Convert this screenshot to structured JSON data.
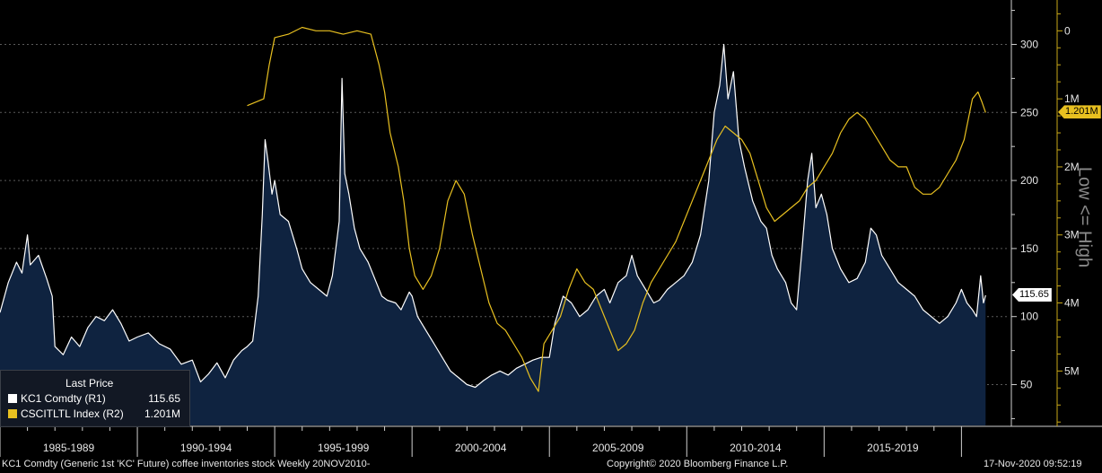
{
  "chart_data": {
    "type": "area",
    "footer": {
      "left": "KC1 Comdty (Generic 1st 'KC' Future) coffee inventories stock  Weekly 20NOV2010-",
      "center": "Copyright© 2020 Bloomberg Finance L.P.",
      "right": "17-Nov-2020 09:52:19"
    },
    "x_labels": [
      "1985-1989",
      "1990-1994",
      "1995-1999",
      "2000-2004",
      "2005-2009",
      "2010-2014",
      "2015-2019"
    ],
    "x_range": [
      1985.0,
      2021.0
    ],
    "y_left": {
      "ticks": [
        50,
        100,
        150,
        200,
        250,
        300
      ],
      "range": [
        20,
        330
      ]
    },
    "y_right": {
      "ticks": [
        "0",
        "1M",
        "2M",
        "3M",
        "4M",
        "5M"
      ],
      "tick_values": [
        0,
        1,
        2,
        3,
        4,
        5
      ],
      "range_millions": [
        -0.4,
        5.8
      ],
      "inverted": true,
      "title": "Low <= High"
    },
    "legend": {
      "title": "Last Price",
      "rows": [
        {
          "name": "KC1 Comdty  (R1)",
          "value": "115.65",
          "color": "#ffffff"
        },
        {
          "name": "CSCITLTL Index  (R2)",
          "value": "1.201M",
          "color": "#e8c020"
        }
      ]
    },
    "last_value_tags": [
      {
        "text": "115.65",
        "value": 115.65,
        "axis": "left",
        "bg": "#ffffff",
        "fg": "#000000"
      },
      {
        "text": "1.201M",
        "value": 1.201,
        "axis": "right",
        "bg": "#e8c020",
        "fg": "#000000"
      }
    ],
    "series": [
      {
        "name": "KC1 Comdty",
        "color": "#ffffff",
        "fill": "#0f2340",
        "points": [
          [
            1985.0,
            103
          ],
          [
            1985.3,
            125
          ],
          [
            1985.6,
            140
          ],
          [
            1985.8,
            132
          ],
          [
            1986.0,
            160
          ],
          [
            1986.1,
            138
          ],
          [
            1986.4,
            145
          ],
          [
            1986.7,
            128
          ],
          [
            1986.9,
            115
          ],
          [
            1987.0,
            78
          ],
          [
            1987.3,
            72
          ],
          [
            1987.6,
            85
          ],
          [
            1987.9,
            78
          ],
          [
            1988.2,
            92
          ],
          [
            1988.5,
            100
          ],
          [
            1988.8,
            97
          ],
          [
            1989.1,
            105
          ],
          [
            1989.4,
            95
          ],
          [
            1989.7,
            82
          ],
          [
            1990.0,
            85
          ],
          [
            1990.4,
            88
          ],
          [
            1990.8,
            80
          ],
          [
            1991.2,
            76
          ],
          [
            1991.6,
            65
          ],
          [
            1992.0,
            68
          ],
          [
            1992.3,
            52
          ],
          [
            1992.6,
            58
          ],
          [
            1992.9,
            66
          ],
          [
            1993.2,
            55
          ],
          [
            1993.5,
            68
          ],
          [
            1993.8,
            75
          ],
          [
            1994.0,
            78
          ],
          [
            1994.2,
            82
          ],
          [
            1994.4,
            115
          ],
          [
            1994.55,
            175
          ],
          [
            1994.65,
            230
          ],
          [
            1994.75,
            215
          ],
          [
            1994.9,
            190
          ],
          [
            1995.0,
            200
          ],
          [
            1995.2,
            175
          ],
          [
            1995.5,
            170
          ],
          [
            1995.8,
            150
          ],
          [
            1996.0,
            135
          ],
          [
            1996.3,
            125
          ],
          [
            1996.6,
            120
          ],
          [
            1996.9,
            115
          ],
          [
            1997.1,
            130
          ],
          [
            1997.35,
            170
          ],
          [
            1997.45,
            275
          ],
          [
            1997.55,
            205
          ],
          [
            1997.7,
            190
          ],
          [
            1997.9,
            165
          ],
          [
            1998.1,
            150
          ],
          [
            1998.4,
            140
          ],
          [
            1998.7,
            125
          ],
          [
            1998.9,
            115
          ],
          [
            1999.1,
            112
          ],
          [
            1999.4,
            110
          ],
          [
            1999.6,
            105
          ],
          [
            1999.9,
            118
          ],
          [
            2000.0,
            115
          ],
          [
            2000.2,
            100
          ],
          [
            2000.5,
            90
          ],
          [
            2000.8,
            80
          ],
          [
            2001.1,
            70
          ],
          [
            2001.4,
            60
          ],
          [
            2001.7,
            55
          ],
          [
            2002.0,
            50
          ],
          [
            2002.3,
            48
          ],
          [
            2002.6,
            53
          ],
          [
            2002.9,
            57
          ],
          [
            2003.2,
            60
          ],
          [
            2003.5,
            57
          ],
          [
            2003.8,
            62
          ],
          [
            2004.1,
            65
          ],
          [
            2004.4,
            68
          ],
          [
            2004.7,
            70
          ],
          [
            2005.0,
            70
          ],
          [
            2005.2,
            95
          ],
          [
            2005.5,
            115
          ],
          [
            2005.8,
            110
          ],
          [
            2006.1,
            100
          ],
          [
            2006.4,
            105
          ],
          [
            2006.7,
            115
          ],
          [
            2007.0,
            120
          ],
          [
            2007.2,
            110
          ],
          [
            2007.5,
            125
          ],
          [
            2007.8,
            130
          ],
          [
            2008.0,
            145
          ],
          [
            2008.2,
            130
          ],
          [
            2008.5,
            120
          ],
          [
            2008.8,
            110
          ],
          [
            2009.0,
            112
          ],
          [
            2009.3,
            120
          ],
          [
            2009.6,
            125
          ],
          [
            2009.9,
            130
          ],
          [
            2010.2,
            140
          ],
          [
            2010.5,
            160
          ],
          [
            2010.8,
            200
          ],
          [
            2011.0,
            250
          ],
          [
            2011.2,
            270
          ],
          [
            2011.35,
            300
          ],
          [
            2011.5,
            260
          ],
          [
            2011.7,
            280
          ],
          [
            2011.9,
            230
          ],
          [
            2012.1,
            210
          ],
          [
            2012.4,
            185
          ],
          [
            2012.7,
            170
          ],
          [
            2012.9,
            165
          ],
          [
            2013.1,
            145
          ],
          [
            2013.3,
            135
          ],
          [
            2013.6,
            125
          ],
          [
            2013.8,
            110
          ],
          [
            2014.0,
            105
          ],
          [
            2014.2,
            150
          ],
          [
            2014.4,
            200
          ],
          [
            2014.55,
            220
          ],
          [
            2014.7,
            180
          ],
          [
            2014.9,
            190
          ],
          [
            2015.1,
            175
          ],
          [
            2015.3,
            150
          ],
          [
            2015.6,
            135
          ],
          [
            2015.9,
            125
          ],
          [
            2016.2,
            128
          ],
          [
            2016.5,
            140
          ],
          [
            2016.7,
            165
          ],
          [
            2016.9,
            160
          ],
          [
            2017.1,
            145
          ],
          [
            2017.4,
            135
          ],
          [
            2017.7,
            125
          ],
          [
            2018.0,
            120
          ],
          [
            2018.3,
            115
          ],
          [
            2018.6,
            105
          ],
          [
            2018.9,
            100
          ],
          [
            2019.2,
            95
          ],
          [
            2019.5,
            100
          ],
          [
            2019.8,
            110
          ],
          [
            2020.0,
            120
          ],
          [
            2020.2,
            110
          ],
          [
            2020.4,
            105
          ],
          [
            2020.55,
            100
          ],
          [
            2020.7,
            130
          ],
          [
            2020.8,
            110
          ],
          [
            2020.88,
            115.65
          ]
        ]
      },
      {
        "name": "CSCITLTL Index",
        "color": "#e8c020",
        "points": [
          [
            1994.0,
            1.1
          ],
          [
            1994.6,
            1.0
          ],
          [
            1994.8,
            0.5
          ],
          [
            1995.0,
            0.1
          ],
          [
            1995.5,
            0.05
          ],
          [
            1996.0,
            -0.05
          ],
          [
            1996.5,
            0.0
          ],
          [
            1997.0,
            0.0
          ],
          [
            1997.5,
            0.05
          ],
          [
            1998.0,
            0.0
          ],
          [
            1998.5,
            0.05
          ],
          [
            1998.8,
            0.5
          ],
          [
            1999.0,
            0.9
          ],
          [
            1999.2,
            1.5
          ],
          [
            1999.5,
            2.0
          ],
          [
            1999.7,
            2.5
          ],
          [
            1999.9,
            3.2
          ],
          [
            2000.1,
            3.6
          ],
          [
            2000.4,
            3.8
          ],
          [
            2000.7,
            3.6
          ],
          [
            2001.0,
            3.2
          ],
          [
            2001.3,
            2.5
          ],
          [
            2001.6,
            2.2
          ],
          [
            2001.9,
            2.4
          ],
          [
            2002.2,
            3.0
          ],
          [
            2002.5,
            3.5
          ],
          [
            2002.8,
            4.0
          ],
          [
            2003.1,
            4.3
          ],
          [
            2003.4,
            4.4
          ],
          [
            2003.7,
            4.6
          ],
          [
            2004.0,
            4.8
          ],
          [
            2004.3,
            5.1
          ],
          [
            2004.6,
            5.3
          ],
          [
            2004.8,
            4.6
          ],
          [
            2005.1,
            4.4
          ],
          [
            2005.4,
            4.2
          ],
          [
            2005.7,
            3.8
          ],
          [
            2006.0,
            3.5
          ],
          [
            2006.3,
            3.7
          ],
          [
            2006.6,
            3.8
          ],
          [
            2006.9,
            4.1
          ],
          [
            2007.2,
            4.4
          ],
          [
            2007.5,
            4.7
          ],
          [
            2007.8,
            4.6
          ],
          [
            2008.1,
            4.4
          ],
          [
            2008.4,
            4.0
          ],
          [
            2008.7,
            3.7
          ],
          [
            2009.0,
            3.5
          ],
          [
            2009.3,
            3.3
          ],
          [
            2009.6,
            3.1
          ],
          [
            2009.9,
            2.8
          ],
          [
            2010.2,
            2.5
          ],
          [
            2010.5,
            2.2
          ],
          [
            2010.8,
            1.9
          ],
          [
            2011.1,
            1.6
          ],
          [
            2011.4,
            1.4
          ],
          [
            2011.7,
            1.5
          ],
          [
            2012.0,
            1.6
          ],
          [
            2012.3,
            1.8
          ],
          [
            2012.6,
            2.2
          ],
          [
            2012.9,
            2.6
          ],
          [
            2013.2,
            2.8
          ],
          [
            2013.5,
            2.7
          ],
          [
            2013.8,
            2.6
          ],
          [
            2014.1,
            2.5
          ],
          [
            2014.4,
            2.3
          ],
          [
            2014.7,
            2.2
          ],
          [
            2015.0,
            2.0
          ],
          [
            2015.3,
            1.8
          ],
          [
            2015.6,
            1.5
          ],
          [
            2015.9,
            1.3
          ],
          [
            2016.2,
            1.2
          ],
          [
            2016.5,
            1.3
          ],
          [
            2016.8,
            1.5
          ],
          [
            2017.1,
            1.7
          ],
          [
            2017.4,
            1.9
          ],
          [
            2017.7,
            2.0
          ],
          [
            2018.0,
            2.0
          ],
          [
            2018.3,
            2.3
          ],
          [
            2018.6,
            2.4
          ],
          [
            2018.9,
            2.4
          ],
          [
            2019.2,
            2.3
          ],
          [
            2019.5,
            2.1
          ],
          [
            2019.8,
            1.9
          ],
          [
            2020.1,
            1.6
          ],
          [
            2020.4,
            1.0
          ],
          [
            2020.6,
            0.9
          ],
          [
            2020.75,
            1.05
          ],
          [
            2020.88,
            1.201
          ]
        ]
      }
    ]
  }
}
